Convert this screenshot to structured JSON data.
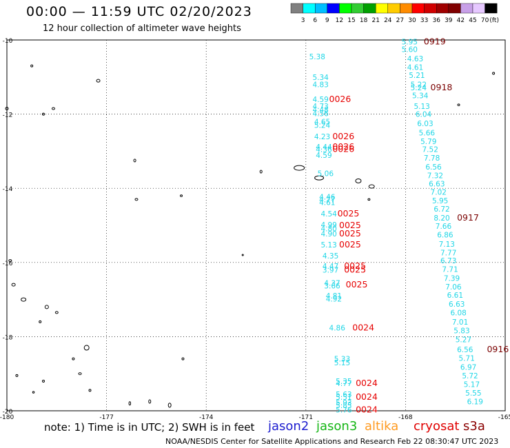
{
  "header": {
    "title": "00:00 — 11:59 UTC 02/20/2023",
    "subtitle": "12 hour collection of altimeter wave heights"
  },
  "legend": {
    "unit": "(ft)",
    "ticks": [
      "3",
      "6",
      "9",
      "12",
      "15",
      "18",
      "21",
      "24",
      "27",
      "30",
      "33",
      "36",
      "39",
      "42",
      "45",
      "70"
    ],
    "colors": [
      "#808080",
      "#00ffff",
      "#00bfff",
      "#0000ff",
      "#00ff00",
      "#32cd32",
      "#00a000",
      "#ffff00",
      "#ffcc00",
      "#ff8c00",
      "#ff0000",
      "#d00000",
      "#a00000",
      "#800000",
      "#c8a0e8",
      "#e6c8ff",
      "#000000"
    ]
  },
  "map": {
    "x_ticks": [
      "-180",
      "-177",
      "-174",
      "-171",
      "-168",
      "-165"
    ],
    "y_ticks": [
      "-10",
      "-12",
      "-14",
      "-16",
      "-18",
      "-20"
    ],
    "grid": true,
    "colors": {
      "cyan": "#1fd6e6",
      "red": "#e60000",
      "darkred": "#7a0000"
    },
    "track_a": [
      {
        "v": "5.38",
        "lon": -170.9,
        "lat": -10.45
      },
      {
        "v": "5.34",
        "lon": -170.8,
        "lat": -11.0
      },
      {
        "v": "4.83",
        "lon": -170.8,
        "lat": -11.2
      },
      {
        "v": "4.59",
        "lon": -170.8,
        "lat": -11.6
      },
      {
        "v": "4.73",
        "lon": -170.8,
        "lat": -11.78
      },
      {
        "v": "4.48",
        "lon": -170.8,
        "lat": -11.88
      },
      {
        "v": "4.56",
        "lon": -170.8,
        "lat": -11.98
      },
      {
        "v": "4.65",
        "lon": -170.75,
        "lat": -12.2
      },
      {
        "v": "5.24",
        "lon": -170.75,
        "lat": -12.3
      },
      {
        "v": "4.23",
        "lon": -170.75,
        "lat": -12.6
      },
      {
        "v": "4.44",
        "lon": -170.7,
        "lat": -12.88
      },
      {
        "v": "4.36",
        "lon": -170.7,
        "lat": -12.95
      },
      {
        "v": "4.59",
        "lon": -170.7,
        "lat": -13.1
      },
      {
        "v": "5.06",
        "lon": -170.65,
        "lat": -13.6
      },
      {
        "v": "4.46",
        "lon": -170.6,
        "lat": -14.23
      },
      {
        "v": "4.77",
        "lon": -170.6,
        "lat": -14.3
      },
      {
        "v": "4.61",
        "lon": -170.6,
        "lat": -14.38
      },
      {
        "v": "4.54",
        "lon": -170.55,
        "lat": -14.68
      },
      {
        "v": "4.99",
        "lon": -170.55,
        "lat": -14.98
      },
      {
        "v": "4.80",
        "lon": -170.55,
        "lat": -15.08
      },
      {
        "v": "4.90",
        "lon": -170.55,
        "lat": -15.22
      },
      {
        "v": "5.13",
        "lon": -170.55,
        "lat": -15.52
      },
      {
        "v": "4.35",
        "lon": -170.5,
        "lat": -15.82
      },
      {
        "v": "4.47",
        "lon": -170.5,
        "lat": -16.1
      },
      {
        "v": "3.97",
        "lon": -170.5,
        "lat": -16.2
      },
      {
        "v": "4.37",
        "lon": -170.45,
        "lat": -16.55
      },
      {
        "v": "3.66",
        "lon": -170.45,
        "lat": -16.63
      },
      {
        "v": "4.81",
        "lon": -170.4,
        "lat": -16.9
      },
      {
        "v": "4.92",
        "lon": -170.4,
        "lat": -16.98
      },
      {
        "v": "4.86",
        "lon": -170.3,
        "lat": -17.76
      },
      {
        "v": "5.33",
        "lon": -170.15,
        "lat": -18.6
      },
      {
        "v": "5.15",
        "lon": -170.15,
        "lat": -18.7
      },
      {
        "v": "5.35",
        "lon": -170.1,
        "lat": -19.2
      },
      {
        "v": "4.77",
        "lon": -170.1,
        "lat": -19.26
      },
      {
        "v": "5.63",
        "lon": -170.1,
        "lat": -19.55
      },
      {
        "v": "5.51",
        "lon": -170.1,
        "lat": -19.63
      },
      {
        "v": "5.93",
        "lon": -170.1,
        "lat": -19.78
      },
      {
        "v": "5.85",
        "lon": -170.1,
        "lat": -19.85
      },
      {
        "v": "5.76",
        "lon": -170.1,
        "lat": -19.97
      }
    ],
    "track_b": [
      {
        "v": "5.95",
        "lon": -168.12,
        "lat": -10.05
      },
      {
        "v": "5.60",
        "lon": -168.12,
        "lat": -10.25
      },
      {
        "v": "4.63",
        "lon": -167.95,
        "lat": -10.5
      },
      {
        "v": "4.61",
        "lon": -167.95,
        "lat": -10.73
      },
      {
        "v": "5.21",
        "lon": -167.9,
        "lat": -10.95
      },
      {
        "v": "5.22",
        "lon": -167.85,
        "lat": -11.2
      },
      {
        "v": "5.24",
        "lon": -167.85,
        "lat": -11.28
      },
      {
        "v": "5.34",
        "lon": -167.8,
        "lat": -11.5
      },
      {
        "v": "5.13",
        "lon": -167.75,
        "lat": -11.78
      },
      {
        "v": "6.04",
        "lon": -167.7,
        "lat": -12.0
      },
      {
        "v": "6.03",
        "lon": -167.65,
        "lat": -12.25
      },
      {
        "v": "5.66",
        "lon": -167.6,
        "lat": -12.5
      },
      {
        "v": "5.79",
        "lon": -167.55,
        "lat": -12.73
      },
      {
        "v": "7.52",
        "lon": -167.5,
        "lat": -12.95
      },
      {
        "v": "7.78",
        "lon": -167.45,
        "lat": -13.18
      },
      {
        "v": "6.56",
        "lon": -167.4,
        "lat": -13.42
      },
      {
        "v": "7.32",
        "lon": -167.35,
        "lat": -13.65
      },
      {
        "v": "6.63",
        "lon": -167.3,
        "lat": -13.88
      },
      {
        "v": "7.02",
        "lon": -167.25,
        "lat": -14.1
      },
      {
        "v": "5.95",
        "lon": -167.2,
        "lat": -14.33
      },
      {
        "v": "6.72",
        "lon": -167.15,
        "lat": -14.55
      },
      {
        "v": "8.20",
        "lon": -167.15,
        "lat": -14.8
      },
      {
        "v": "7.66",
        "lon": -167.1,
        "lat": -15.02
      },
      {
        "v": "6.86",
        "lon": -167.05,
        "lat": -15.25
      },
      {
        "v": "7.13",
        "lon": -167.0,
        "lat": -15.5
      },
      {
        "v": "7.77",
        "lon": -166.95,
        "lat": -15.73
      },
      {
        "v": "6.73",
        "lon": -166.95,
        "lat": -15.95
      },
      {
        "v": "7.71",
        "lon": -166.9,
        "lat": -16.18
      },
      {
        "v": "7.39",
        "lon": -166.85,
        "lat": -16.42
      },
      {
        "v": "7.06",
        "lon": -166.8,
        "lat": -16.65
      },
      {
        "v": "6.61",
        "lon": -166.75,
        "lat": -16.88
      },
      {
        "v": "6.63",
        "lon": -166.7,
        "lat": -17.12
      },
      {
        "v": "6.08",
        "lon": -166.65,
        "lat": -17.35
      },
      {
        "v": "7.01",
        "lon": -166.6,
        "lat": -17.6
      },
      {
        "v": "5.83",
        "lon": -166.55,
        "lat": -17.83
      },
      {
        "v": "5.27",
        "lon": -166.5,
        "lat": -18.08
      },
      {
        "v": "6.56",
        "lon": -166.45,
        "lat": -18.35
      },
      {
        "v": "5.71",
        "lon": -166.4,
        "lat": -18.58
      },
      {
        "v": "6.97",
        "lon": -166.35,
        "lat": -18.82
      },
      {
        "v": "5.72",
        "lon": -166.3,
        "lat": -19.05
      },
      {
        "v": "5.17",
        "lon": -166.25,
        "lat": -19.28
      },
      {
        "v": "5.55",
        "lon": -166.2,
        "lat": -19.52
      },
      {
        "v": "6.19",
        "lon": -166.15,
        "lat": -19.75
      }
    ],
    "time_labels": [
      {
        "t": "0026",
        "lon": -170.3,
        "lat": -11.6,
        "c": "red"
      },
      {
        "t": "0026",
        "lon": -170.2,
        "lat": -12.6,
        "c": "red"
      },
      {
        "t": "0026",
        "lon": -170.2,
        "lat": -12.88,
        "c": "red"
      },
      {
        "t": "0026",
        "lon": -170.2,
        "lat": -12.95,
        "c": "red"
      },
      {
        "t": "0025",
        "lon": -170.05,
        "lat": -14.68,
        "c": "red"
      },
      {
        "t": "0025",
        "lon": -170.0,
        "lat": -15.0,
        "c": "red"
      },
      {
        "t": "0025",
        "lon": -170.0,
        "lat": -15.22,
        "c": "red"
      },
      {
        "t": "0025",
        "lon": -170.0,
        "lat": -15.52,
        "c": "red"
      },
      {
        "t": "0025",
        "lon": -169.85,
        "lat": -16.1,
        "c": "red"
      },
      {
        "t": "0025",
        "lon": -169.85,
        "lat": -16.2,
        "c": "red"
      },
      {
        "t": "0025",
        "lon": -169.8,
        "lat": -16.6,
        "c": "red"
      },
      {
        "t": "0024",
        "lon": -169.6,
        "lat": -17.76,
        "c": "red"
      },
      {
        "t": "0024",
        "lon": -169.5,
        "lat": -19.26,
        "c": "red"
      },
      {
        "t": "0024",
        "lon": -169.5,
        "lat": -19.63,
        "c": "red"
      },
      {
        "t": "0024",
        "lon": -169.5,
        "lat": -19.97,
        "c": "red"
      },
      {
        "t": "0919",
        "lon": -167.45,
        "lat": -10.05,
        "c": "darkred"
      },
      {
        "t": "0918",
        "lon": -167.25,
        "lat": -11.28,
        "c": "darkred"
      },
      {
        "t": "0917",
        "lon": -166.45,
        "lat": -14.8,
        "c": "darkred"
      },
      {
        "t": "0916",
        "lon": -165.55,
        "lat": -18.35,
        "c": "darkred"
      }
    ]
  },
  "footer": {
    "note": "note: 1) Time is in UTC; 2) SWH is in feet",
    "credit": "NOAA/NESDIS Center for Satellite Applications and Research   Feb 22 08:30:47 UTC 2023",
    "satellites": [
      {
        "name": "jason2",
        "color": "#1c1ccf"
      },
      {
        "name": "jason3",
        "color": "#14b514"
      },
      {
        "name": "altika",
        "color": "#ff9a1f"
      },
      {
        "name": "cryosat",
        "color": "#e00000"
      },
      {
        "name": "s3a",
        "color": "#8a0000"
      }
    ]
  }
}
